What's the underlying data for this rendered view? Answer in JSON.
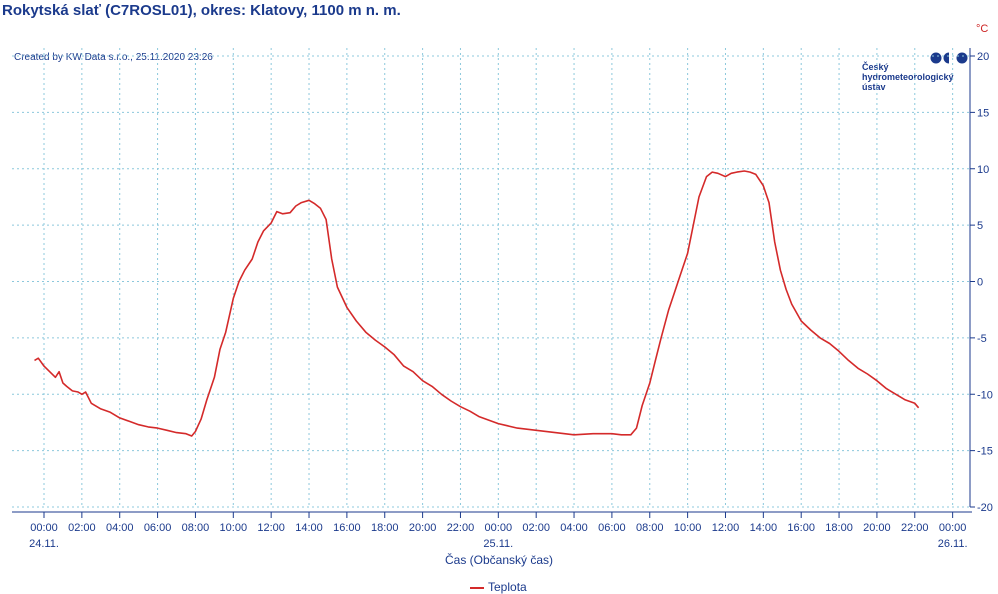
{
  "header": {
    "title": "Rokytská slať (C7ROSL01), okres: Klatovy, 1100 m n. m.",
    "credit": "Created by KW Data s.r.o., 25.11.2020 23:26",
    "unit": "°C"
  },
  "logo": {
    "line1": "Český",
    "line2": "hydrometeorologický",
    "line3": "ústav",
    "color": "#1b3a8c"
  },
  "chart_data": {
    "type": "line",
    "title": "Rokytská slať (C7ROSL01), okres: Klatovy, 1100 m n. m.",
    "xlabel": "Čas (Občanský čas)",
    "ylabel": "°C",
    "x_range_hours": [
      -0.8,
      48.4
    ],
    "ylim": [
      -20,
      20
    ],
    "y_ticks": [
      20,
      15,
      10,
      5,
      0,
      -5,
      -10,
      -15,
      -20
    ],
    "x_tick_labels": [
      "00:00",
      "02:00",
      "04:00",
      "06:00",
      "08:00",
      "10:00",
      "12:00",
      "14:00",
      "16:00",
      "18:00",
      "20:00",
      "22:00",
      "00:00",
      "02:00",
      "04:00",
      "06:00",
      "08:00",
      "10:00",
      "12:00",
      "14:00",
      "16:00",
      "18:00",
      "20:00",
      "22:00",
      "00:00"
    ],
    "date_labels": [
      {
        "text": "24.11.",
        "hour": 0
      },
      {
        "text": "25.11.",
        "hour": 24
      },
      {
        "text": "26.11.",
        "hour": 48
      }
    ],
    "grid": true,
    "legend_position": "bottom-center",
    "series": [
      {
        "name": "Teplota",
        "color": "#d42a2a",
        "x_hours": [
          -0.5,
          -0.3,
          0,
          0.3,
          0.6,
          0.8,
          1.0,
          1.2,
          1.5,
          1.8,
          2.0,
          2.2,
          2.5,
          3.0,
          3.5,
          4.0,
          4.5,
          5.0,
          5.5,
          6.0,
          6.5,
          7.0,
          7.5,
          7.8,
          8.0,
          8.3,
          8.6,
          9.0,
          9.3,
          9.6,
          10.0,
          10.3,
          10.6,
          11.0,
          11.3,
          11.6,
          12.0,
          12.3,
          12.6,
          13.0,
          13.3,
          13.6,
          14.0,
          14.3,
          14.6,
          14.9,
          15.2,
          15.5,
          16.0,
          16.5,
          17.0,
          17.5,
          18.0,
          18.5,
          19.0,
          19.5,
          20.0,
          20.5,
          21.0,
          21.5,
          22.0,
          22.5,
          23.0,
          24.0,
          25.0,
          26.0,
          27.0,
          28.0,
          29.0,
          30.0,
          30.5,
          31.0,
          31.3,
          31.6,
          32.0,
          32.3,
          32.6,
          33.0,
          33.3,
          33.6,
          34.0,
          34.3,
          34.6,
          35.0,
          35.3,
          35.6,
          36.0,
          36.3,
          36.6,
          37.0,
          37.3,
          37.6,
          38.0,
          38.3,
          38.6,
          38.9,
          39.2,
          39.5,
          40.0,
          40.5,
          41.0,
          41.5,
          42.0,
          42.5,
          43.0,
          43.5,
          44.0,
          44.5,
          45.0,
          45.5,
          46.0,
          46.2
        ],
        "values": [
          -7.0,
          -6.8,
          -7.5,
          -8.0,
          -8.5,
          -8.0,
          -9.0,
          -9.3,
          -9.7,
          -9.8,
          -10.0,
          -9.8,
          -10.8,
          -11.3,
          -11.6,
          -12.1,
          -12.4,
          -12.7,
          -12.9,
          -13.0,
          -13.2,
          -13.4,
          -13.5,
          -13.7,
          -13.3,
          -12.2,
          -10.5,
          -8.5,
          -6.0,
          -4.5,
          -1.5,
          0.0,
          1.0,
          2.0,
          3.5,
          4.5,
          5.2,
          6.2,
          6.0,
          6.1,
          6.7,
          7.0,
          7.2,
          6.9,
          6.5,
          5.5,
          2.0,
          -0.5,
          -2.3,
          -3.5,
          -4.5,
          -5.2,
          -5.8,
          -6.5,
          -7.5,
          -8.0,
          -8.8,
          -9.3,
          -10.0,
          -10.6,
          -11.1,
          -11.5,
          -12.0,
          -12.6,
          -13.0,
          -13.2,
          -13.4,
          -13.6,
          -13.5,
          -13.5,
          -13.6,
          -13.6,
          -13.0,
          -11.0,
          -9.0,
          -7.0,
          -5.0,
          -2.5,
          -1.0,
          0.5,
          2.5,
          5.0,
          7.5,
          9.3,
          9.7,
          9.6,
          9.3,
          9.6,
          9.7,
          9.8,
          9.7,
          9.5,
          8.5,
          7.0,
          3.5,
          1.0,
          -0.7,
          -2.0,
          -3.5,
          -4.3,
          -5.0,
          -5.5,
          -6.2,
          -7.0,
          -7.7,
          -8.2,
          -8.8,
          -9.5,
          -10.0,
          -10.5,
          -10.8,
          -11.2
        ]
      }
    ]
  }
}
